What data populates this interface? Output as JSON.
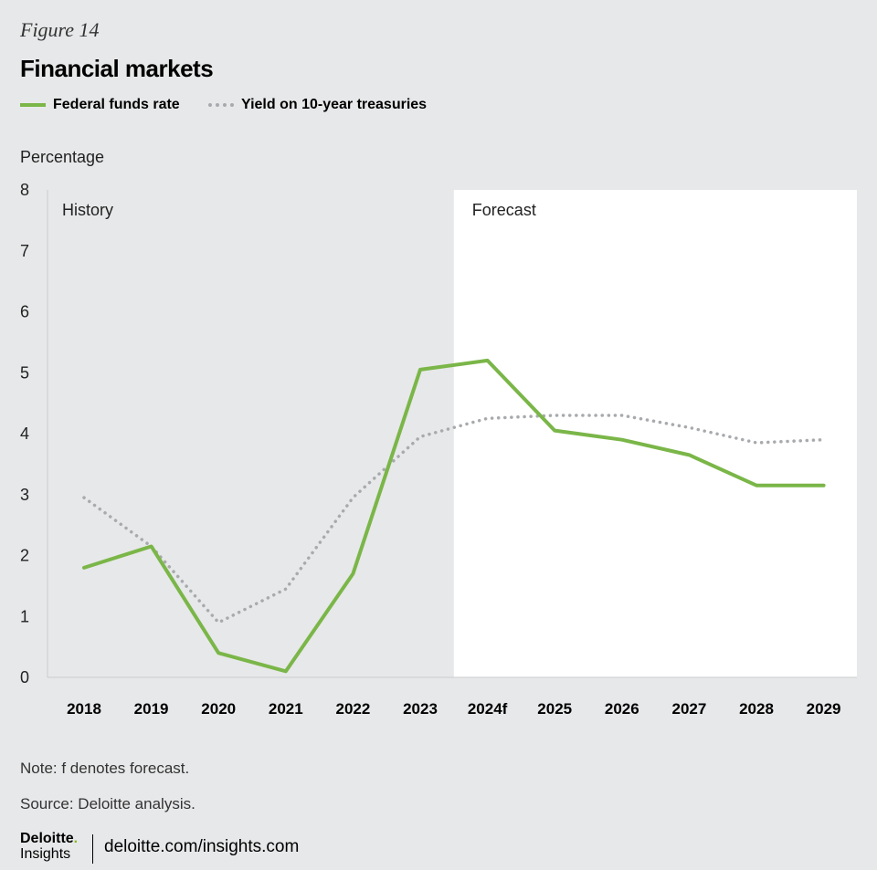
{
  "figure_label": "Figure 14",
  "title": "Financial markets",
  "legend": [
    {
      "label": "Federal funds rate",
      "color": "#7ab648",
      "style": "solid"
    },
    {
      "label": "Yield on 10-year treasuries",
      "color": "#a8aaad",
      "style": "dotted"
    }
  ],
  "chart_data": {
    "type": "line",
    "ylabel": "Percentage",
    "xlabel": "",
    "ylim": [
      0,
      8
    ],
    "yticks": [
      0,
      1,
      2,
      3,
      4,
      5,
      6,
      7,
      8
    ],
    "categories": [
      "2018",
      "2019",
      "2020",
      "2021",
      "2022",
      "2023",
      "2024f",
      "2025",
      "2026",
      "2027",
      "2028",
      "2029"
    ],
    "series": [
      {
        "name": "Federal funds rate",
        "color": "#7ab648",
        "style": "solid",
        "values": [
          1.8,
          2.15,
          0.4,
          0.1,
          1.7,
          5.05,
          5.2,
          4.05,
          3.9,
          3.65,
          3.15,
          3.15
        ]
      },
      {
        "name": "Yield on 10-year treasuries",
        "color": "#a8aaad",
        "style": "dotted",
        "values": [
          2.95,
          2.15,
          0.9,
          1.45,
          2.95,
          3.95,
          4.25,
          4.3,
          4.3,
          4.1,
          3.85,
          3.9
        ]
      }
    ],
    "regions": [
      {
        "label": "History",
        "from": "2018",
        "to": "2023"
      },
      {
        "label": "Forecast",
        "from": "2024f",
        "to": "2029",
        "fill": "#ffffff"
      }
    ],
    "grid": false,
    "legend_position": "top-left"
  },
  "notes": [
    "Note: f denotes forecast.",
    "Source: Deloitte analysis."
  ],
  "footer": {
    "logo_line1": "Deloitte",
    "logo_dot": ".",
    "logo_line2": "Insights",
    "url": "deloitte.com/insights.com"
  }
}
